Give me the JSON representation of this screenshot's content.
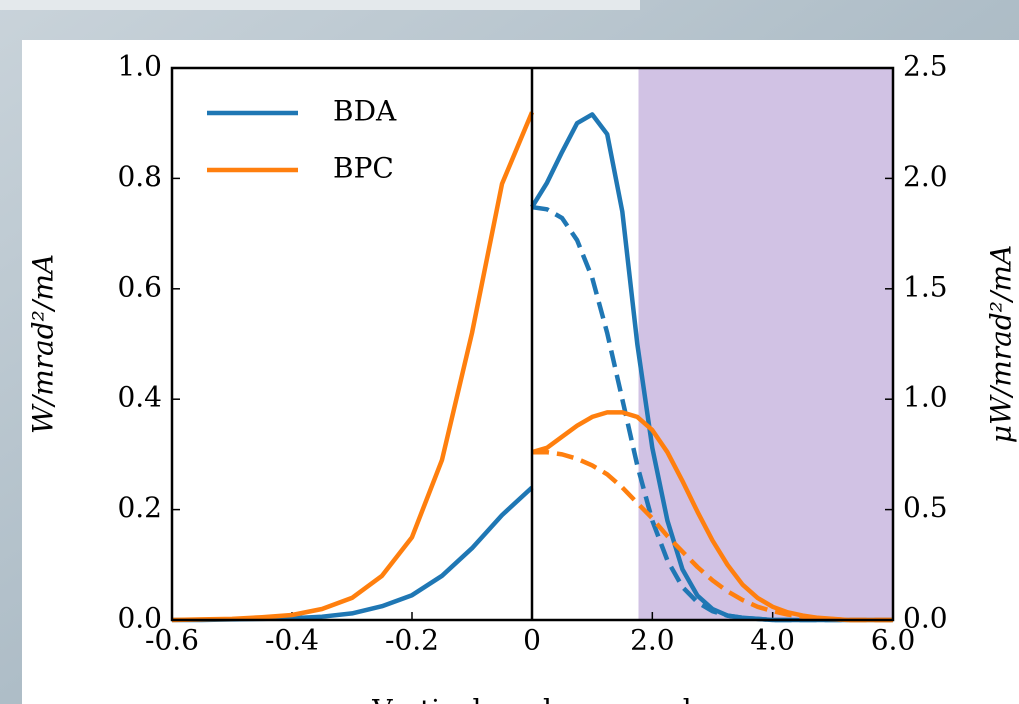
{
  "chart_data": [
    {
      "type": "line",
      "ylabel": "W/mrad²/mA",
      "xlim": [
        -0.6,
        0
      ],
      "xticks": [
        -0.6,
        -0.4,
        -0.2,
        0
      ],
      "ylim": [
        0,
        1.0
      ],
      "yticks": [
        {
          "value": 0,
          "label": "0.0"
        },
        0.2,
        0.4,
        0.6,
        0.8,
        {
          "value": 1.0,
          "label": "1.0"
        }
      ],
      "legend": "upper left",
      "x": [
        -0.6,
        -0.55,
        -0.5,
        -0.45,
        -0.4,
        -0.35,
        -0.3,
        -0.25,
        -0.2,
        -0.15,
        -0.1,
        -0.05,
        0
      ],
      "series": [
        {
          "name": "BDA",
          "color": "#1f77b4",
          "values": [
            0,
            0,
            0.001,
            0.002,
            0.003,
            0.006,
            0.012,
            0.025,
            0.045,
            0.08,
            0.13,
            0.19,
            0.24
          ]
        },
        {
          "name": "BPC",
          "color": "#ff7f0e",
          "values": [
            0,
            0.001,
            0.002,
            0.005,
            0.009,
            0.02,
            0.04,
            0.08,
            0.15,
            0.29,
            0.52,
            0.79,
            0.92
          ]
        }
      ]
    },
    {
      "type": "line",
      "xlabel": "Vertical angle ψ, mrad",
      "y2label": "μW/mrad²/mA",
      "xlim": [
        0,
        6.0
      ],
      "xticks": [
        {
          "value": 2.0,
          "label": "2.0"
        },
        {
          "value": 4.0,
          "label": "4.0"
        },
        {
          "value": 6.0,
          "label": "6.0"
        }
      ],
      "y2lim": [
        0,
        2.5
      ],
      "y2ticks": [
        {
          "value": 0,
          "label": "0.0"
        },
        0.5,
        {
          "value": 1.0,
          "label": "1.0"
        },
        1.5,
        {
          "value": 2.0,
          "label": "2.0"
        },
        2.5
      ],
      "span": [
        1.77,
        6.0
      ],
      "span_color": "#d1c2e4",
      "x": [
        0,
        0.25,
        0.5,
        0.75,
        1.0,
        1.25,
        1.5,
        1.75,
        2.0,
        2.25,
        2.5,
        2.75,
        3.0,
        3.25,
        3.5,
        3.75,
        4.0,
        4.25,
        4.5,
        4.75,
        5.0,
        5.25,
        5.5,
        5.75,
        6.0
      ],
      "series": [
        {
          "color": "#1f77b4",
          "linestyle": "solid",
          "axis": "y2",
          "values": [
            1.87,
            1.98,
            2.12,
            2.25,
            2.29,
            2.2,
            1.85,
            1.25,
            0.78,
            0.45,
            0.23,
            0.11,
            0.05,
            0.02,
            0.01,
            0.005,
            0,
            0,
            0,
            0,
            0,
            0,
            0,
            0,
            0
          ]
        },
        {
          "color": "#1f77b4",
          "linestyle": "dashed",
          "axis": "y2",
          "values": [
            1.87,
            1.86,
            1.82,
            1.72,
            1.55,
            1.3,
            1.0,
            0.7,
            0.45,
            0.27,
            0.15,
            0.08,
            0.04,
            0.02,
            0.01,
            0.005,
            0,
            0,
            0,
            0,
            0,
            0,
            0,
            0,
            0
          ]
        },
        {
          "color": "#ff7f0e",
          "linestyle": "solid",
          "axis": "y2",
          "values": [
            0.76,
            0.78,
            0.83,
            0.88,
            0.92,
            0.94,
            0.94,
            0.92,
            0.86,
            0.76,
            0.63,
            0.49,
            0.36,
            0.25,
            0.16,
            0.1,
            0.06,
            0.035,
            0.02,
            0.01,
            0.005,
            0,
            0,
            0,
            0
          ]
        },
        {
          "color": "#ff7f0e",
          "linestyle": "dashed",
          "axis": "y2",
          "values": [
            0.76,
            0.76,
            0.75,
            0.73,
            0.7,
            0.66,
            0.6,
            0.53,
            0.46,
            0.38,
            0.31,
            0.24,
            0.18,
            0.13,
            0.09,
            0.06,
            0.04,
            0.025,
            0.015,
            0.008,
            0.004,
            0,
            0,
            0,
            0
          ]
        }
      ]
    }
  ]
}
